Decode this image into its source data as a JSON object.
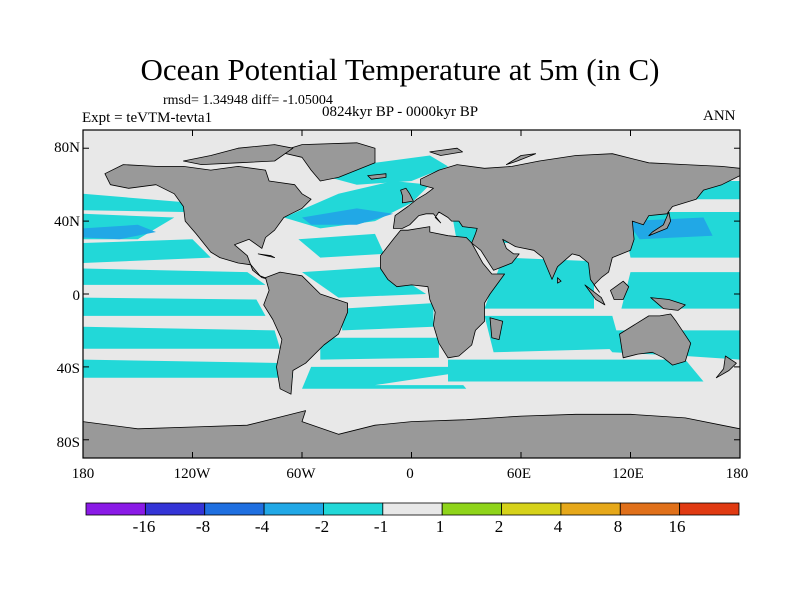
{
  "title": "Ocean Potential Temperature at 5m (in C)",
  "stats_line": "rmsd= 1.34948  diff= -1.05004",
  "left_label": "Expt = teVTM-tevta1",
  "center_label": "0824kyr BP - 0000kyr BP",
  "right_label": "ANN",
  "map": {
    "projection": "cylindrical equidistant",
    "lon_range": [
      -180,
      180
    ],
    "lat_range": [
      -90,
      90
    ],
    "land_color": "#999999",
    "coastline_color": "#000000",
    "x_ticks": [
      {
        "lon": -180,
        "label": "180"
      },
      {
        "lon": -120,
        "label": "120W"
      },
      {
        "lon": -60,
        "label": "60W"
      },
      {
        "lon": 0,
        "label": "0"
      },
      {
        "lon": 60,
        "label": "60E"
      },
      {
        "lon": 120,
        "label": "120E"
      },
      {
        "lon": 180,
        "label": "180"
      }
    ],
    "y_ticks": [
      {
        "lat": 80,
        "label": "80N"
      },
      {
        "lat": 40,
        "label": "40N"
      },
      {
        "lat": 0,
        "label": "0"
      },
      {
        "lat": -40,
        "label": "40S"
      },
      {
        "lat": -80,
        "label": "80S"
      }
    ]
  },
  "colorbar": {
    "colors": [
      "#8a1ae6",
      "#3434d6",
      "#1f6fe0",
      "#21a8e6",
      "#22d8d8",
      "#e8e8e8",
      "#8fd41a",
      "#d6d21a",
      "#e6a81a",
      "#e0701a",
      "#e03a12"
    ],
    "labels": [
      "-16",
      "-8",
      "-4",
      "-2",
      "-1",
      "1",
      "2",
      "4",
      "8",
      "16"
    ]
  }
}
